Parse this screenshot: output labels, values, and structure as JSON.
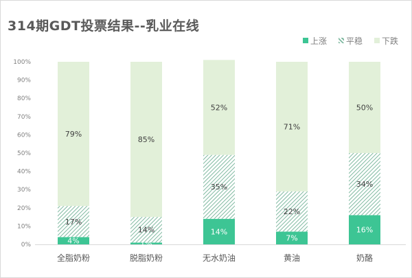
{
  "chart_data": {
    "type": "bar",
    "stacked": true,
    "percent_stacked": true,
    "title": "314期GDT投票结果--乳业在线",
    "categories": [
      "全脂奶粉",
      "脱脂奶粉",
      "无水奶油",
      "黄油",
      "奶酪"
    ],
    "series": [
      {
        "name": "上涨",
        "values": [
          4,
          1,
          14,
          7,
          16
        ],
        "labels": [
          "4%",
          "1%",
          "14%",
          "7%",
          "16%"
        ],
        "color": "#3dc594",
        "pattern": "solid"
      },
      {
        "name": "平稳",
        "values": [
          17,
          14,
          35,
          22,
          34
        ],
        "labels": [
          "17%",
          "14%",
          "35%",
          "22%",
          "34%"
        ],
        "color": "#7fb9a0",
        "pattern": "hatch"
      },
      {
        "name": "下跌",
        "values": [
          79,
          85,
          52,
          71,
          50
        ],
        "labels": [
          "79%",
          "85%",
          "52%",
          "71%",
          "50%"
        ],
        "color": "#e2f0d9",
        "pattern": "solid"
      }
    ],
    "yticks": [
      "0%",
      "10%",
      "20%",
      "30%",
      "40%",
      "50%",
      "60%",
      "70%",
      "80%",
      "90%",
      "100%"
    ],
    "ylim": [
      0,
      100
    ],
    "grid": false,
    "legend": "top-right",
    "xlabel": "",
    "ylabel": ""
  }
}
